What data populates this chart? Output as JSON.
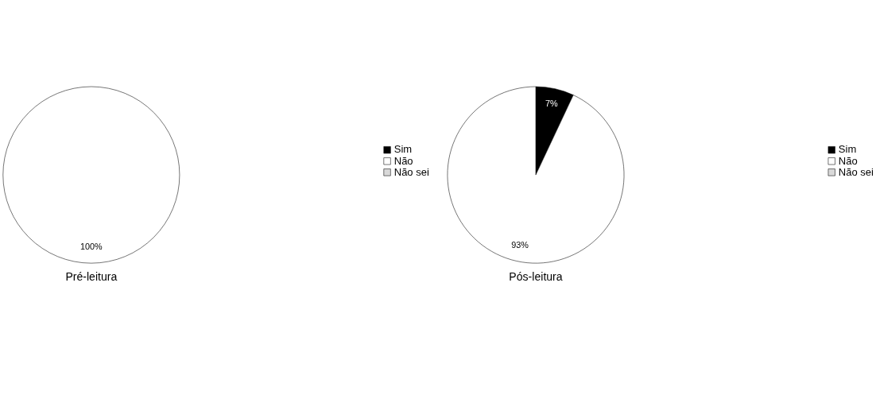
{
  "chart_data": [
    {
      "type": "pie",
      "title": "Pré-leitura",
      "categories": [
        "Sim",
        "Não",
        "Não sei"
      ],
      "values": [
        0,
        100,
        0
      ],
      "colors": [
        "#000000",
        "#ffffff",
        "#d9d9d9"
      ],
      "value_labels": [
        null,
        "100%",
        null
      ],
      "legend": "right"
    },
    {
      "type": "pie",
      "title": "Pós-leitura",
      "categories": [
        "Sim",
        "Não",
        "Não sei"
      ],
      "values": [
        7,
        93,
        0
      ],
      "colors": [
        "#000000",
        "#ffffff",
        "#d9d9d9"
      ],
      "value_labels": [
        "7%",
        "93%",
        null
      ],
      "legend": "right"
    }
  ]
}
